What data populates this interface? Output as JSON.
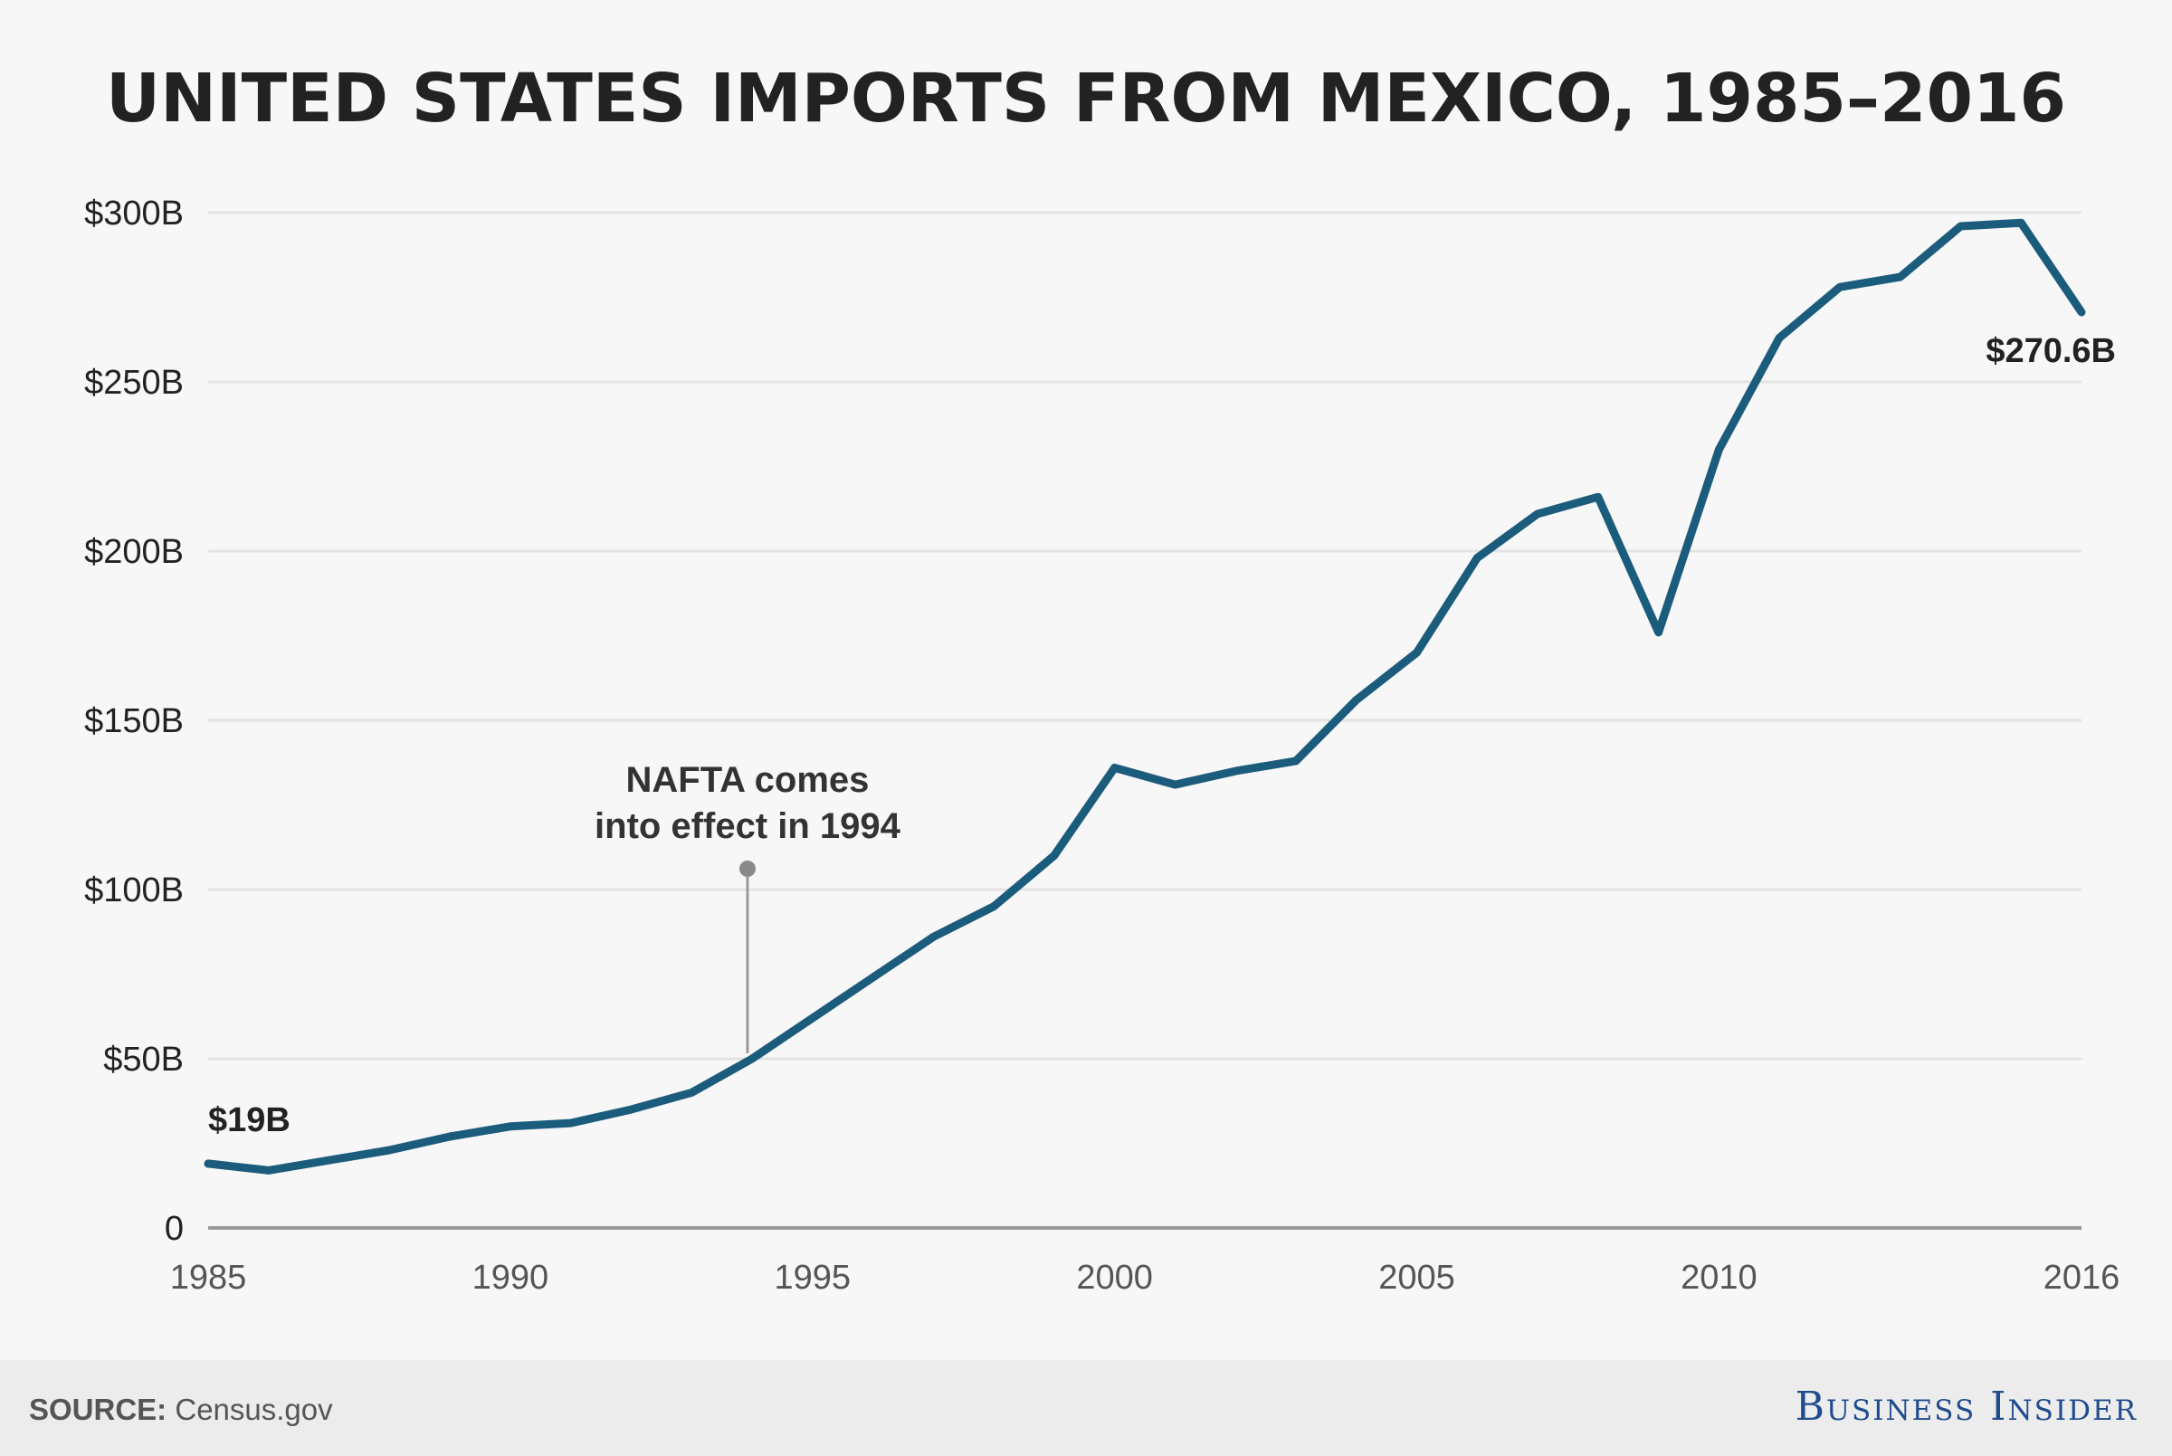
{
  "title": "UNITED STATES IMPORTS FROM MEXICO, 1985–2016",
  "footer": {
    "source_label": "SOURCE:",
    "source_text": "Census.gov",
    "brand": "Business Insider"
  },
  "colors": {
    "line": "#1b5c7d",
    "background": "#f7f7f7",
    "grid": "#e3e3e3",
    "axis": "#999999",
    "footer_bg": "#ececec",
    "brand": "#1f4b8f"
  },
  "chart_data": {
    "type": "line",
    "title": "UNITED STATES IMPORTS FROM MEXICO, 1985–2016",
    "xlabel": "",
    "ylabel": "",
    "xlim": [
      1985,
      2016
    ],
    "ylim": [
      0,
      300
    ],
    "y_ticks": [
      0,
      50,
      100,
      150,
      200,
      250,
      300
    ],
    "y_tick_labels": [
      "0",
      "$50B",
      "$100B",
      "$150B",
      "$200B",
      "$250B",
      "$300B"
    ],
    "x_ticks": [
      1985,
      1990,
      1995,
      2000,
      2005,
      2010,
      2016
    ],
    "x_tick_labels": [
      "1985",
      "1990",
      "1995",
      "2000",
      "2005",
      "2010",
      "2016"
    ],
    "grid": true,
    "series": [
      {
        "x": [
          1985,
          1986,
          1987,
          1988,
          1989,
          1990,
          1991,
          1992,
          1993,
          1994,
          1995,
          1996,
          1997,
          1998,
          1999,
          2000,
          2001,
          2002,
          2003,
          2004,
          2005,
          2006,
          2007,
          2008,
          2009,
          2010,
          2011,
          2012,
          2013,
          2014,
          2015,
          2016
        ],
        "values": [
          19,
          17,
          20,
          23,
          27,
          30,
          31,
          35,
          40,
          50,
          62,
          74,
          86,
          95,
          110,
          136,
          131,
          135,
          138,
          156,
          170,
          198,
          211,
          216,
          176,
          230,
          263,
          278,
          281,
          296,
          297,
          270.6
        ]
      }
    ],
    "data_labels": [
      {
        "x": 1985,
        "y": 19,
        "text": "$19B"
      },
      {
        "x": 2016,
        "y": 270.6,
        "text": "$270.6B"
      }
    ],
    "annotations": [
      {
        "x": 1994,
        "y": 50,
        "line1": "NAFTA comes",
        "line2": "into effect in 1994"
      }
    ]
  }
}
